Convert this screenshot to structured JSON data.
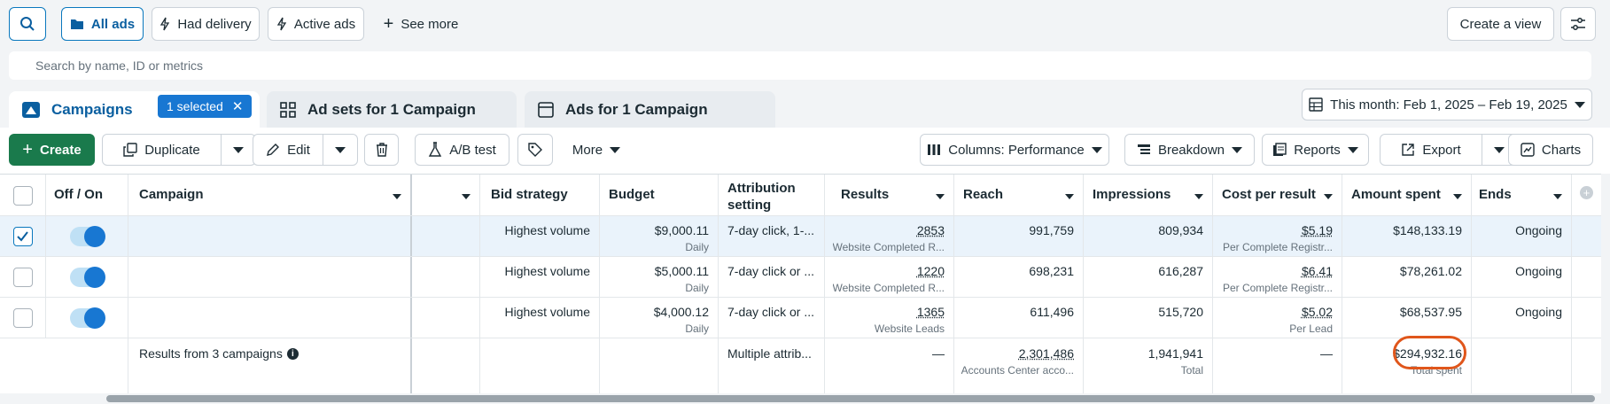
{
  "filters": {
    "all_ads": "All ads",
    "had_delivery": "Had delivery",
    "active_ads": "Active ads",
    "see_more": "See more"
  },
  "header_actions": {
    "create_view": "Create a view"
  },
  "search": {
    "placeholder": "Search by name, ID or metrics"
  },
  "tabs": {
    "campaigns": "Campaigns",
    "selected_badge": "1 selected",
    "ad_sets": "Ad sets for 1 Campaign",
    "ads": "Ads for 1 Campaign"
  },
  "date_range": "This month: Feb 1, 2025 – Feb 19, 2025",
  "toolbar": {
    "create": "Create",
    "duplicate": "Duplicate",
    "edit": "Edit",
    "ab_test": "A/B test",
    "more": "More",
    "columns": "Columns: Performance",
    "breakdown": "Breakdown",
    "reports": "Reports",
    "export": "Export",
    "charts": "Charts"
  },
  "table": {
    "headers": {
      "off_on": "Off / On",
      "campaign": "Campaign",
      "bid_strategy": "Bid strategy",
      "budget": "Budget",
      "attribution": "Attribution setting",
      "results": "Results",
      "reach": "Reach",
      "impressions": "Impressions",
      "cost_per_result": "Cost per result",
      "amount_spent": "Amount spent",
      "ends": "Ends"
    },
    "rows": [
      {
        "checked": true,
        "bid_strategy": "Highest volume",
        "budget": "$9,000.11",
        "budget_period": "Daily",
        "attribution": "7-day click, 1-...",
        "results": "2853",
        "results_type": "Website Completed R...",
        "reach": "991,759",
        "impressions": "809,934",
        "cost_per_result": "$5.19",
        "cost_type": "Per Complete Registr...",
        "amount_spent": "$148,133.19",
        "ends": "Ongoing"
      },
      {
        "checked": false,
        "bid_strategy": "Highest volume",
        "budget": "$5,000.11",
        "budget_period": "Daily",
        "attribution": "7-day click or ...",
        "results": "1220",
        "results_type": "Website Completed R...",
        "reach": "698,231",
        "impressions": "616,287",
        "cost_per_result": "$6.41",
        "cost_type": "Per Complete Registr...",
        "amount_spent": "$78,261.02",
        "ends": "Ongoing"
      },
      {
        "checked": false,
        "bid_strategy": "Highest volume",
        "budget": "$4,000.12",
        "budget_period": "Daily",
        "attribution": "7-day click or ...",
        "results": "1365",
        "results_type": "Website Leads",
        "reach": "611,496",
        "impressions": "515,720",
        "cost_per_result": "$5.02",
        "cost_type": "Per Lead",
        "amount_spent": "$68,537.95",
        "ends": "Ongoing"
      }
    ],
    "summary": {
      "label": "Results from 3 campaigns",
      "attribution": "Multiple attrib...",
      "results": "—",
      "reach": "2,301,486",
      "reach_sub": "Accounts Center acco...",
      "impressions": "1,941,941",
      "impressions_sub": "Total",
      "cost_per_result": "—",
      "amount_spent": "$294,932.16",
      "amount_sub": "Total spent"
    }
  },
  "colors": {
    "accent": "#0a78be",
    "create_button": "#1a7a4c",
    "highlight_circle": "#e0561b"
  }
}
